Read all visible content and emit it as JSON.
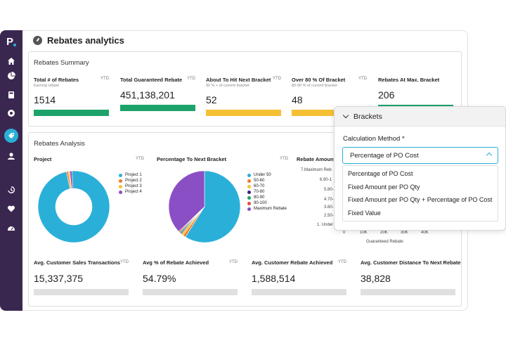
{
  "page": {
    "title": "Rebates analytics"
  },
  "colors": {
    "green": "#1da36a",
    "yellow": "#f6c034",
    "cyan": "#2ab0d8",
    "purple": "#8a4fc4",
    "orange": "#f07a2a",
    "sidebar": "#3a2750"
  },
  "sidebar": {
    "icons": [
      "home-icon",
      "pie-chart-icon",
      "calculator-icon",
      "analytics-icon",
      "rebate-icon",
      "user-icon",
      "history-icon",
      "heart-icon",
      "dashboard-icon"
    ]
  },
  "summary": {
    "title": "Rebates Summary",
    "kpis": [
      {
        "label": "Total # of Rebates",
        "sub": "Earning rebate",
        "ytd": "YTD",
        "value": "1514",
        "color": "#1da36a"
      },
      {
        "label": "Total Guaranteed Rebate",
        "sub": "",
        "ytd": "YTD",
        "value": "451,138,201",
        "color": "#1da36a"
      },
      {
        "label": "About To Hit Next Bracket",
        "sub": "90 % + of current bracket",
        "ytd": "YTD",
        "value": "52",
        "color": "#f6c034"
      },
      {
        "label": "Over 80 % Of Bracket",
        "sub": "80-90 % of current bracket",
        "ytd": "YTD",
        "value": "48",
        "color": "#f6c034"
      },
      {
        "label": "Rebates At Max. Bracket",
        "sub": "",
        "ytd": "",
        "value": "206",
        "color": "#1da36a"
      }
    ]
  },
  "analysis": {
    "title": "Rebates Analysis",
    "project_chart": {
      "label": "Project",
      "ytd": "YTD",
      "legend": [
        {
          "name": "Project 1",
          "color": "#2ab0d8"
        },
        {
          "name": "Project 2",
          "color": "#f07a2a"
        },
        {
          "name": "Project 3",
          "color": "#f6c034"
        },
        {
          "name": "Project 4",
          "color": "#8a4fc4"
        }
      ]
    },
    "bracket_chart": {
      "label": "Percentage To Next Bracket",
      "ytd": "YTD",
      "legend": [
        {
          "name": "Under 50",
          "color": "#2ab0d8"
        },
        {
          "name": "50-60",
          "color": "#f07a2a"
        },
        {
          "name": "60-70",
          "color": "#f6c034"
        },
        {
          "name": "70-80",
          "color": "#3a2380"
        },
        {
          "name": "80-90",
          "color": "#1da36a"
        },
        {
          "name": "90-100",
          "color": "#e8483c"
        },
        {
          "name": "Maximum Rebate",
          "color": "#8a4fc4"
        }
      ]
    },
    "amount_chart": {
      "label": "Rebate Amount",
      "y_ticks": [
        "7.Maximum Reb",
        "6.90-1",
        "5.80-",
        "4.70-",
        "3.60-",
        "2.50-",
        "1. Under"
      ],
      "x_ticks": [
        "0",
        "10K",
        "20K",
        "30K",
        "40K"
      ],
      "x_label": "Guaranteed Rebate"
    }
  },
  "chart_data": [
    {
      "type": "pie",
      "title": "Project",
      "categories": [
        "Project 1",
        "Project 2",
        "Project 3",
        "Project 4"
      ],
      "values": [
        97.5,
        0.8,
        0.7,
        1.0
      ]
    },
    {
      "type": "pie",
      "title": "Percentage To Next Bracket",
      "categories": [
        "Under 50",
        "50-60",
        "60-70",
        "70-80",
        "80-90",
        "90-100",
        "Maximum Rebate"
      ],
      "values": [
        59,
        1.2,
        1.0,
        0.5,
        0.6,
        0.5,
        37.2
      ]
    }
  ],
  "bottom": [
    {
      "label": "Avg. Customer Sales Transactions",
      "ytd": "YTD",
      "value": "15,337,375"
    },
    {
      "label": "Avg % of Rebate Achieved",
      "ytd": "YTD",
      "value": "54.79%"
    },
    {
      "label": "Avg. Customer Rebate Achieved",
      "ytd": "YTD",
      "value": "1,588,514"
    },
    {
      "label": "Avg. Customer Distance To Next Rebate",
      "ytd": "",
      "value": "38,828"
    }
  ],
  "brackets": {
    "title": "Brackets",
    "method_label": "Calculation Method *",
    "selected": "Percentage of PO Cost",
    "options": [
      "Percentage of PO Cost",
      "Fixed Amount per PO Qty",
      "Fixed Amount per PO Qty + Percentage of PO Cost",
      "Fixed Value"
    ]
  }
}
